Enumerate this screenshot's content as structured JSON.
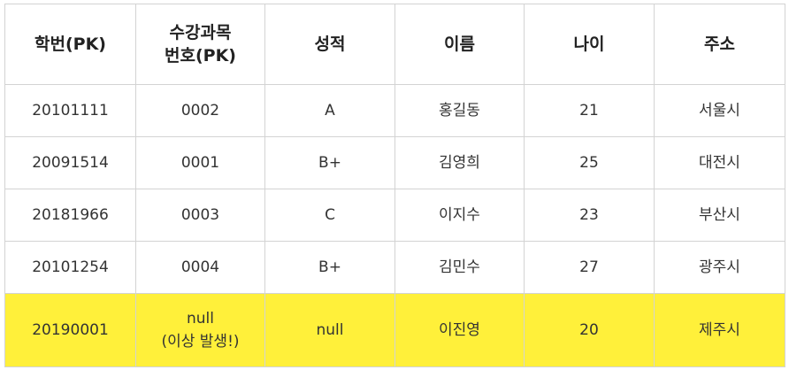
{
  "table": {
    "headers": [
      {
        "lines": [
          "학번(PK)"
        ]
      },
      {
        "lines": [
          "수강과목",
          "번호(PK)"
        ]
      },
      {
        "lines": [
          "성적"
        ]
      },
      {
        "lines": [
          "이름"
        ]
      },
      {
        "lines": [
          "나이"
        ]
      },
      {
        "lines": [
          "주소"
        ]
      }
    ],
    "rows": [
      [
        "20101111",
        "0002",
        "A",
        "홍길동",
        "21",
        "서울시"
      ],
      [
        "20091514",
        "0001",
        "B+",
        "김영희",
        "25",
        "대전시"
      ],
      [
        "20181966",
        "0003",
        "C",
        "이지수",
        "23",
        "부산시"
      ],
      [
        "20101254",
        "0004",
        "B+",
        "김민수",
        "27",
        "광주시"
      ]
    ],
    "highlight_row": {
      "student_id": "20190001",
      "course_lines": [
        "null",
        "(이상 발생!)"
      ],
      "grade": "null",
      "name": "이진영",
      "age": "20",
      "address": "제주시"
    }
  },
  "colors": {
    "highlight_background": "#fff03a",
    "anomaly_text": "#e60000",
    "border": "#d3d3d3"
  }
}
